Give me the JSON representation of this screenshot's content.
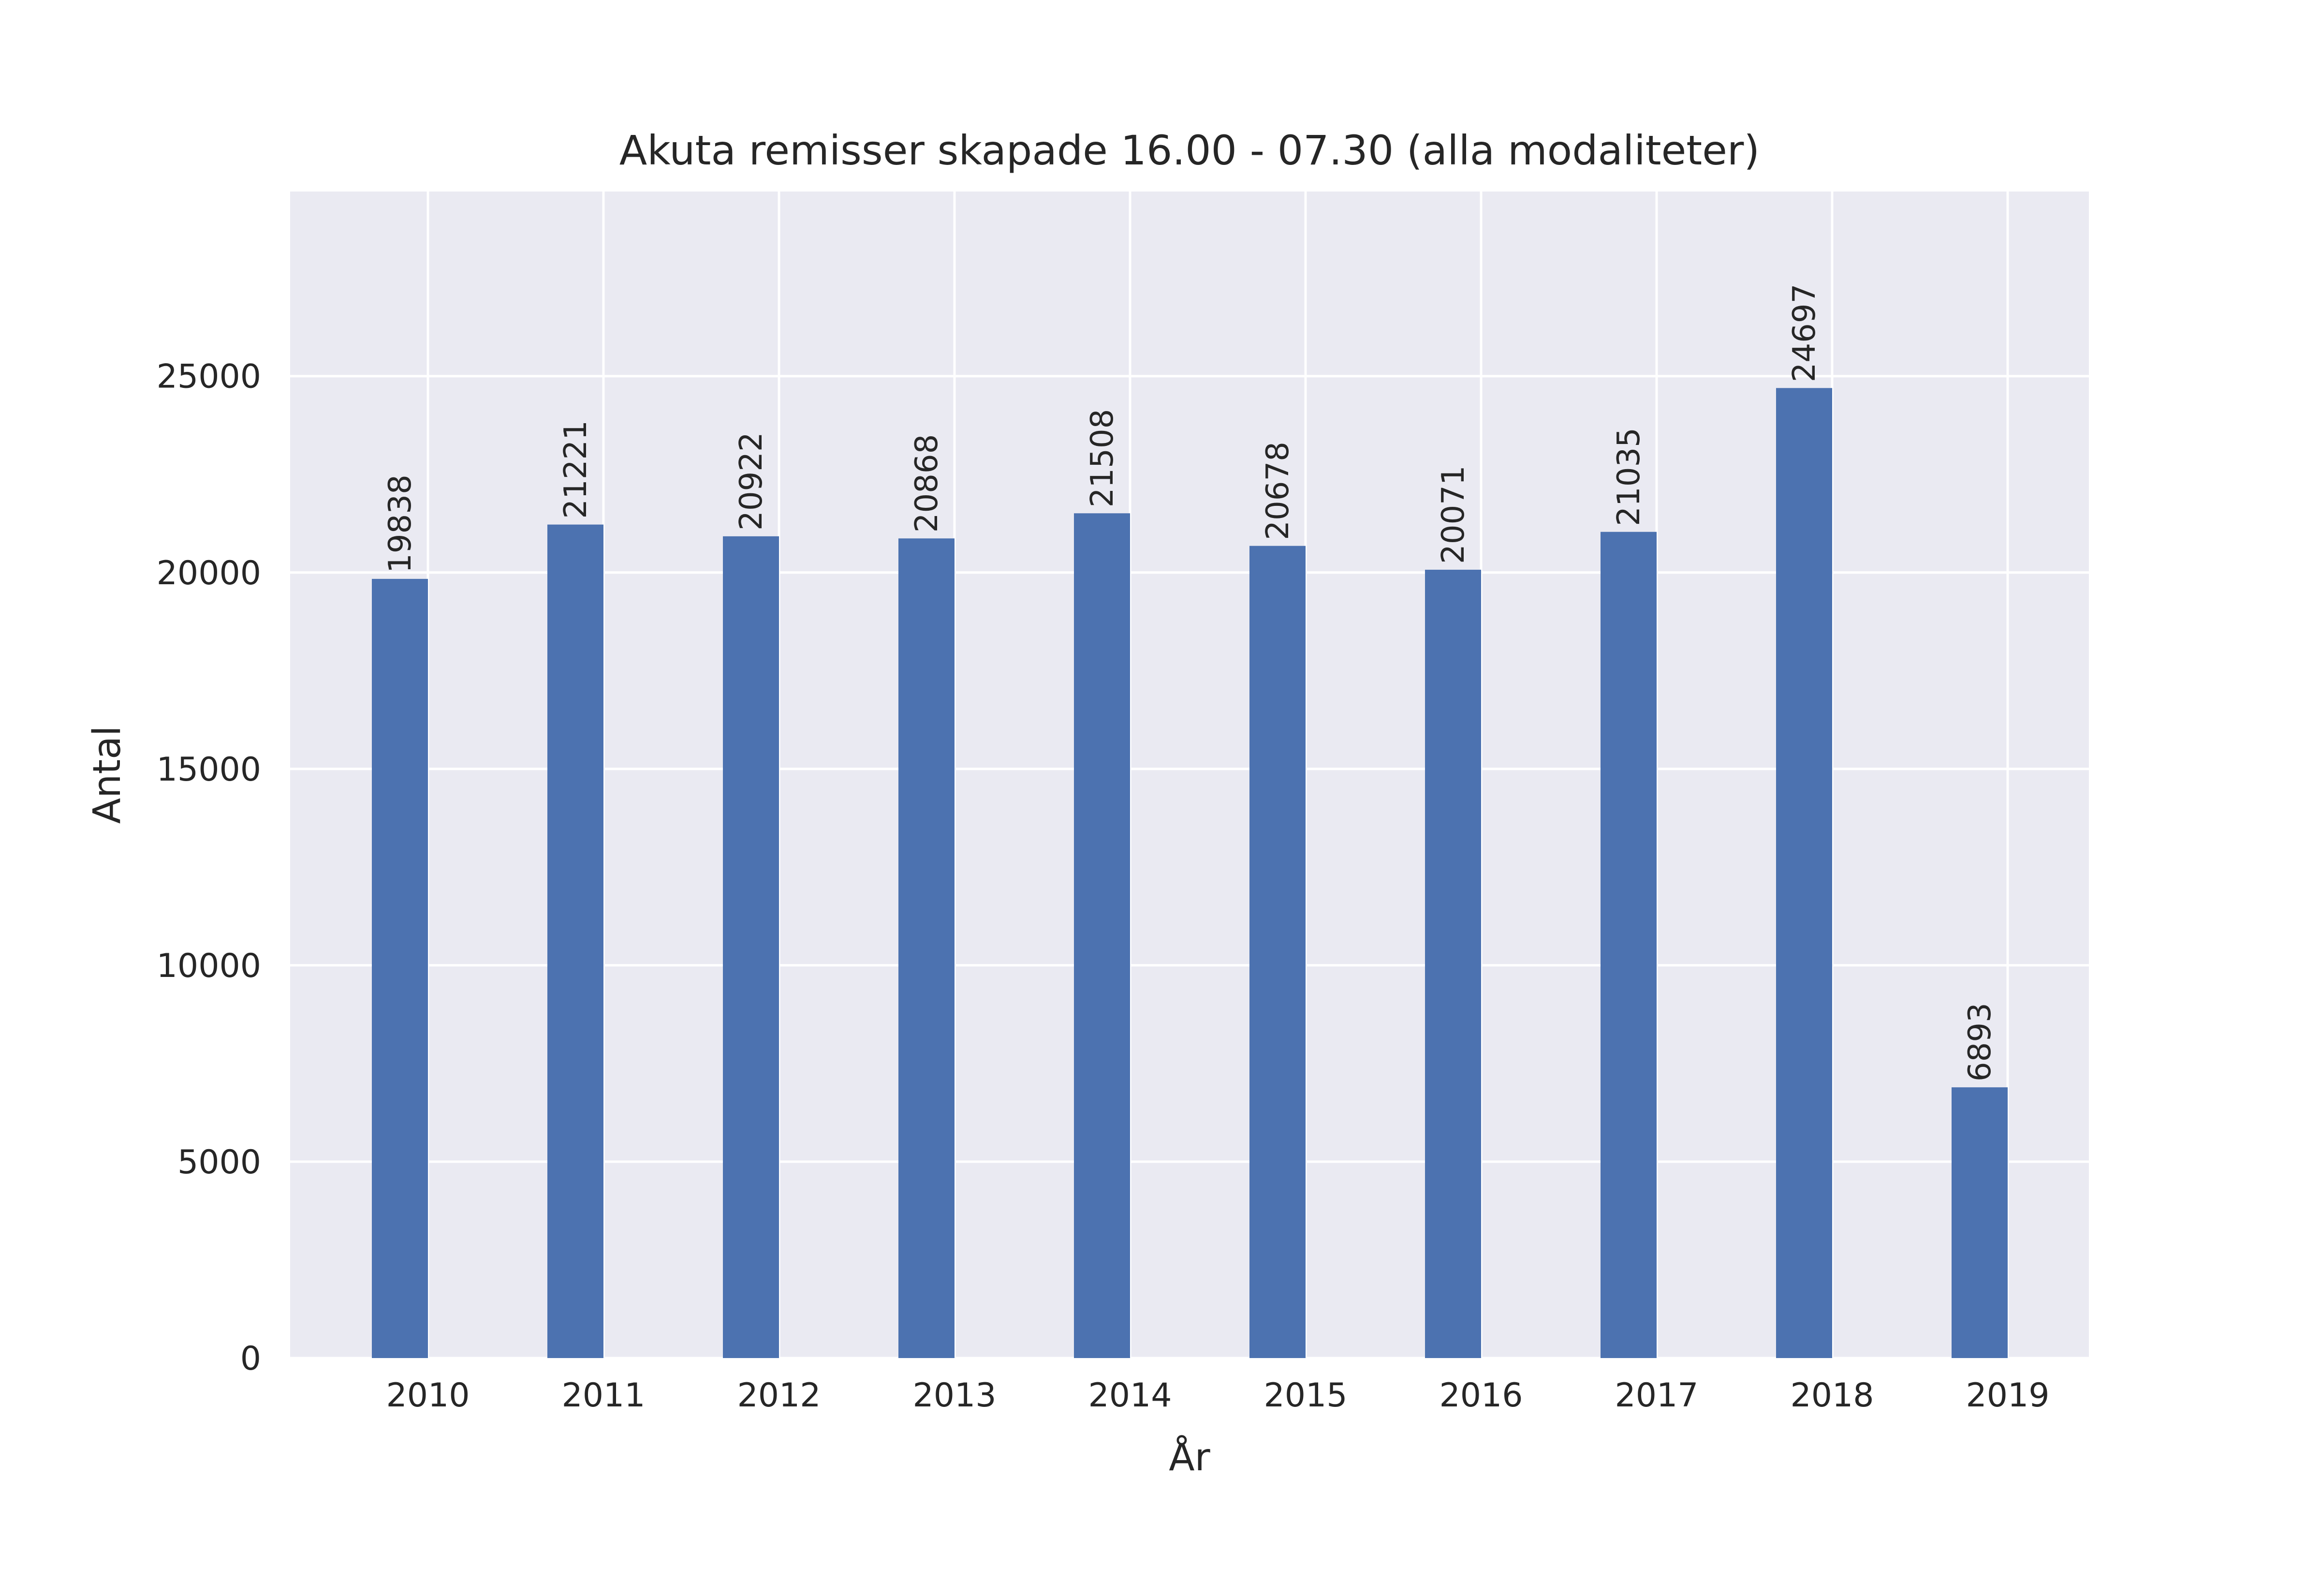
{
  "chart_data": {
    "type": "bar",
    "title": "Akuta remisser skapade 16.00 - 07.30 (alla modaliteter)",
    "xlabel": "År",
    "ylabel": "Antal",
    "categories": [
      "2010",
      "2011",
      "2012",
      "2013",
      "2014",
      "2015",
      "2016",
      "2017",
      "2018",
      "2019"
    ],
    "values": [
      19838,
      21221,
      20922,
      20868,
      21508,
      20678,
      20071,
      21035,
      24697,
      6893
    ],
    "ylim": [
      0,
      29700
    ],
    "yticks": [
      0,
      5000,
      10000,
      15000,
      20000,
      25000
    ],
    "grid": true,
    "colors": {
      "bar": "#4c72b0",
      "plot_background": "#eaeaf2",
      "grid": "#ffffff",
      "text": "#262626"
    }
  }
}
